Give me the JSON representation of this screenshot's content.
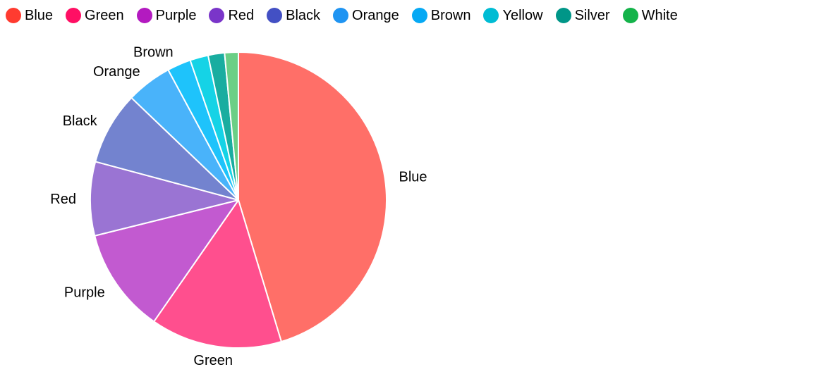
{
  "legend": {
    "items": [
      {
        "label": "Blue",
        "color": "#ff3b30"
      },
      {
        "label": "Green",
        "color": "#ff0f64"
      },
      {
        "label": "Purple",
        "color": "#b31ac0"
      },
      {
        "label": "Red",
        "color": "#7a35c9"
      },
      {
        "label": "Black",
        "color": "#4350c4"
      },
      {
        "label": "Orange",
        "color": "#1f94f2"
      },
      {
        "label": "Brown",
        "color": "#06a9f4"
      },
      {
        "label": "Yellow",
        "color": "#00bcd4"
      },
      {
        "label": "Silver",
        "color": "#009688"
      },
      {
        "label": "White",
        "color": "#14b34a"
      }
    ]
  },
  "chart_data": {
    "type": "pie",
    "title": "",
    "start_angle": "top",
    "direction": "clockwise",
    "legend_position": "top-left",
    "categories": [
      "Blue",
      "Green",
      "Purple",
      "Red",
      "Black",
      "Orange",
      "Brown",
      "Yellow",
      "Silver",
      "White"
    ],
    "values": [
      45.5,
      14.4,
      11.5,
      8.1,
      8.0,
      5.0,
      2.6,
      2.0,
      1.8,
      1.5
    ],
    "slice_colors": [
      "#ff6f68",
      "#ff4f8e",
      "#c25ad0",
      "#9a74d3",
      "#7383cf",
      "#49b3fa",
      "#1ec3fb",
      "#15d3e6",
      "#19ada0",
      "#6bcf86"
    ],
    "show_slice_labels": true
  }
}
